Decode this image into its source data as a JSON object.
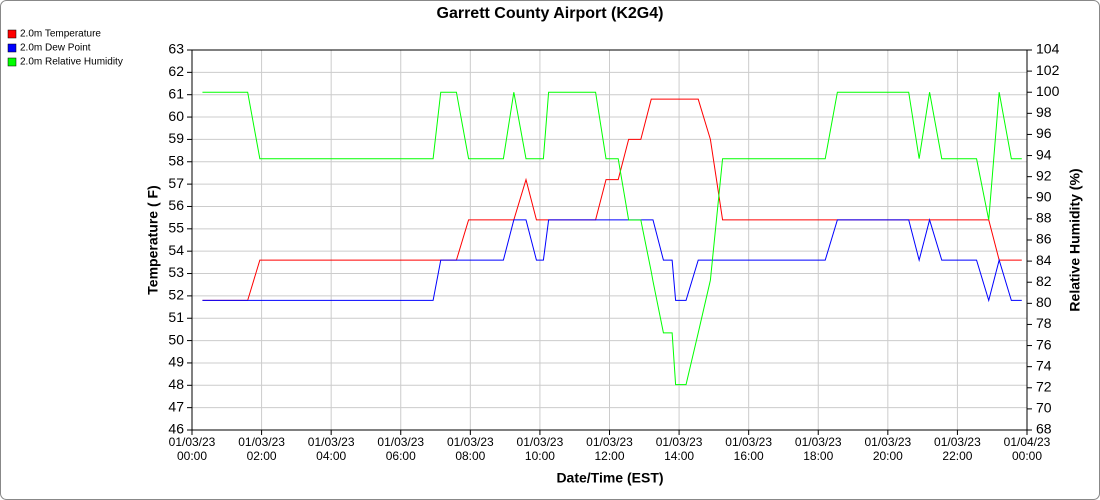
{
  "chart_data": {
    "type": "line",
    "title": "Garrett County Airport (K2G4)",
    "xlabel": "Date/Time (EST)",
    "ylabel": "Temperature ( F)",
    "y2label": "Relative Humidity (%)",
    "grid": true,
    "legend": "top-left",
    "xlim": [
      0,
      24
    ],
    "xticks": [
      {
        "value": 0,
        "label": "01/03/23 00:00"
      },
      {
        "value": 2,
        "label": "01/03/23 02:00"
      },
      {
        "value": 4,
        "label": "01/03/23 04:00"
      },
      {
        "value": 6,
        "label": "01/03/23 06:00"
      },
      {
        "value": 8,
        "label": "01/03/23 08:00"
      },
      {
        "value": 10,
        "label": "01/03/23 10:00"
      },
      {
        "value": 12,
        "label": "01/03/23 12:00"
      },
      {
        "value": 14,
        "label": "01/03/23 14:00"
      },
      {
        "value": 16,
        "label": "01/03/23 16:00"
      },
      {
        "value": 18,
        "label": "01/03/23 18:00"
      },
      {
        "value": 20,
        "label": "01/03/23 20:00"
      },
      {
        "value": 22,
        "label": "01/03/23 22:00"
      },
      {
        "value": 24,
        "label": "01/04/23 00:00"
      }
    ],
    "ylim": [
      46,
      63
    ],
    "yticks": [
      46,
      47,
      48,
      49,
      50,
      51,
      52,
      53,
      54,
      55,
      56,
      57,
      58,
      59,
      60,
      61,
      62,
      63
    ],
    "y2lim": [
      68,
      104
    ],
    "y2ticks": [
      68,
      70,
      72,
      74,
      76,
      78,
      80,
      82,
      84,
      86,
      88,
      90,
      92,
      94,
      96,
      98,
      100,
      102,
      104
    ],
    "x": [
      0.3,
      1.6,
      1.95,
      6.93,
      7.15,
      7.6,
      7.95,
      8.95,
      9.25,
      9.6,
      9.9,
      10.1,
      10.25,
      11.6,
      11.9,
      12.25,
      12.55,
      12.9,
      13.2,
      13.25,
      13.55,
      13.8,
      13.9,
      14.2,
      14.55,
      14.9,
      15.25,
      18.2,
      18.55,
      20.6,
      20.9,
      21.2,
      21.55,
      22.55,
      22.9,
      23.2,
      23.55,
      23.85
    ],
    "series": [
      {
        "name": "2.0m Temperature",
        "color": "#ff0000",
        "values": [
          51.8,
          51.8,
          53.6,
          53.6,
          53.6,
          53.6,
          55.4,
          55.4,
          55.4,
          57.2,
          55.4,
          55.4,
          55.4,
          55.4,
          57.2,
          57.2,
          59,
          59,
          60.8,
          60.8,
          60.8,
          60.8,
          60.8,
          60.8,
          60.8,
          59,
          55.4,
          55.4,
          55.4,
          55.4,
          55.4,
          55.4,
          55.4,
          55.4,
          55.4,
          53.6,
          53.6,
          53.6
        ]
      },
      {
        "name": "2.0m Dew Point",
        "color": "#0000ff",
        "values": [
          51.8,
          51.8,
          51.8,
          51.8,
          53.6,
          53.6,
          53.6,
          53.6,
          55.4,
          55.4,
          53.6,
          53.6,
          55.4,
          55.4,
          55.4,
          55.4,
          55.4,
          55.4,
          55.4,
          55.4,
          53.6,
          53.6,
          51.8,
          51.8,
          53.6,
          53.6,
          53.6,
          53.6,
          55.4,
          55.4,
          53.6,
          55.4,
          53.6,
          53.6,
          51.8,
          53.6,
          51.8,
          51.8
        ]
      },
      {
        "name": "2.0m Relative Humidity",
        "color": "#00ff00",
        "axis": "y2",
        "values": [
          100,
          100,
          93.7,
          93.7,
          100,
          100,
          93.7,
          93.7,
          100,
          93.7,
          93.7,
          93.7,
          100,
          100,
          93.7,
          93.7,
          87.9,
          87.9,
          83,
          82.1,
          77.2,
          77.2,
          72.3,
          72.3,
          77.2,
          82.2,
          93.7,
          93.7,
          100,
          100,
          93.7,
          100,
          93.7,
          93.7,
          87.9,
          100,
          93.7,
          93.7
        ]
      }
    ]
  }
}
